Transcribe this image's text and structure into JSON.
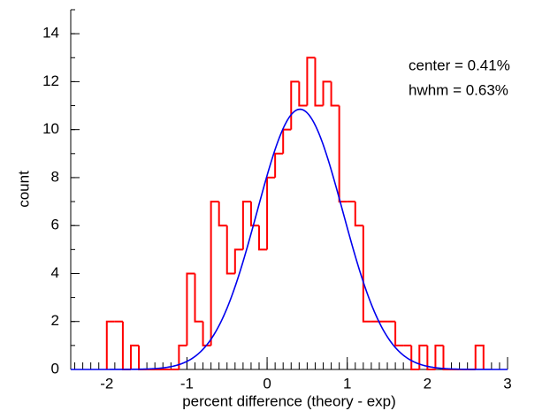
{
  "chart_data": {
    "type": "histogram",
    "xlabel": "percent difference (theory - exp)",
    "ylabel": "count",
    "bins": [
      -2.0,
      -1.9,
      -1.8,
      -1.7,
      -1.6,
      -1.5,
      -1.4,
      -1.3,
      -1.2,
      -1.1,
      -1.0,
      -0.9,
      -0.8,
      -0.7,
      -0.6,
      -0.5,
      -0.4,
      -0.3,
      -0.2,
      -0.1,
      0.0,
      0.1,
      0.2,
      0.3,
      0.4,
      0.5,
      0.6,
      0.7,
      0.8,
      0.9,
      1.0,
      1.1,
      1.2,
      1.3,
      1.4,
      1.5,
      1.6,
      1.7,
      1.8,
      1.9,
      2.0,
      2.1,
      2.2,
      2.3,
      2.4,
      2.5,
      2.6,
      2.7
    ],
    "values": [
      2,
      2,
      0,
      1,
      0,
      0,
      0,
      0,
      0,
      1,
      4,
      2,
      1,
      7,
      6,
      4,
      5,
      7,
      6,
      5,
      8,
      9,
      10,
      12,
      11,
      13,
      11,
      12,
      11,
      7,
      7,
      6,
      2,
      2,
      2,
      2,
      1,
      1,
      0,
      1,
      0,
      1,
      0,
      0,
      0,
      0,
      1
    ],
    "color": "#ff0000",
    "fit": {
      "color": "#0000ee",
      "amplitude": 10.85,
      "center": 0.41,
      "hwhm": 0.63
    },
    "annotations": [
      "center =  0.41%",
      "hwhm =  0.63%"
    ],
    "xlim": [
      -2.45,
      3.0
    ],
    "xticks": [
      -2,
      -1,
      0,
      1,
      2,
      3
    ],
    "x_minor_step": 0.1,
    "ylim": [
      0,
      15
    ],
    "yticks": [
      0,
      2,
      4,
      6,
      8,
      10,
      12,
      14
    ],
    "y_minor_step": 1
  }
}
